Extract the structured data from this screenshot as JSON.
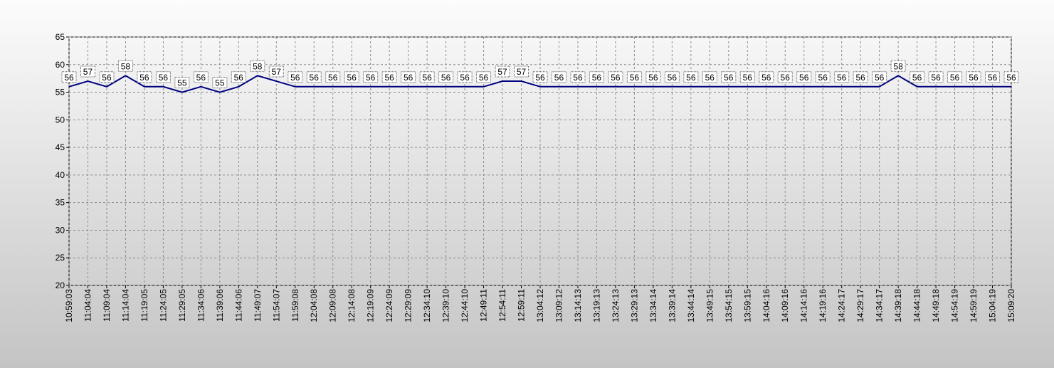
{
  "chart_data": {
    "type": "line",
    "categories": [
      "10:59:03",
      "11:04:04",
      "11:09:04",
      "11:14:04",
      "11:19:05",
      "11:24:05",
      "11:29:05",
      "11:34:06",
      "11:39:06",
      "11:44:06",
      "11:49:07",
      "11:54:07",
      "11:59:08",
      "12:04:08",
      "12:09:08",
      "12:14:08",
      "12:19:09",
      "12:24:09",
      "12:29:09",
      "12:34:10",
      "12:39:10",
      "12:44:10",
      "12:49:11",
      "12:54:11",
      "12:59:11",
      "13:04:12",
      "13:09:12",
      "13:14:13",
      "13:19:13",
      "13:24:13",
      "13:29:13",
      "13:34:14",
      "13:39:14",
      "13:44:14",
      "13:49:15",
      "13:54:15",
      "13:59:15",
      "14:04:16",
      "14:09:16",
      "14:14:16",
      "14:19:16",
      "14:24:17",
      "14:29:17",
      "14:34:17",
      "14:39:18",
      "14:44:18",
      "14:49:18",
      "14:54:19",
      "14:59:19",
      "15:04:19",
      "15:09:20"
    ],
    "values": [
      56,
      57,
      56,
      58,
      56,
      56,
      55,
      56,
      55,
      56,
      58,
      57,
      56,
      56,
      56,
      56,
      56,
      56,
      56,
      56,
      56,
      56,
      56,
      57,
      57,
      56,
      56,
      56,
      56,
      56,
      56,
      56,
      56,
      56,
      56,
      56,
      56,
      56,
      56,
      56,
      56,
      56,
      56,
      56,
      58,
      56,
      56,
      56,
      56,
      56,
      56
    ],
    "color": "#000080",
    "ylim": [
      20,
      65
    ],
    "yticks": [
      20,
      25,
      30,
      35,
      40,
      45,
      50,
      55,
      60,
      65
    ],
    "grid": true
  }
}
